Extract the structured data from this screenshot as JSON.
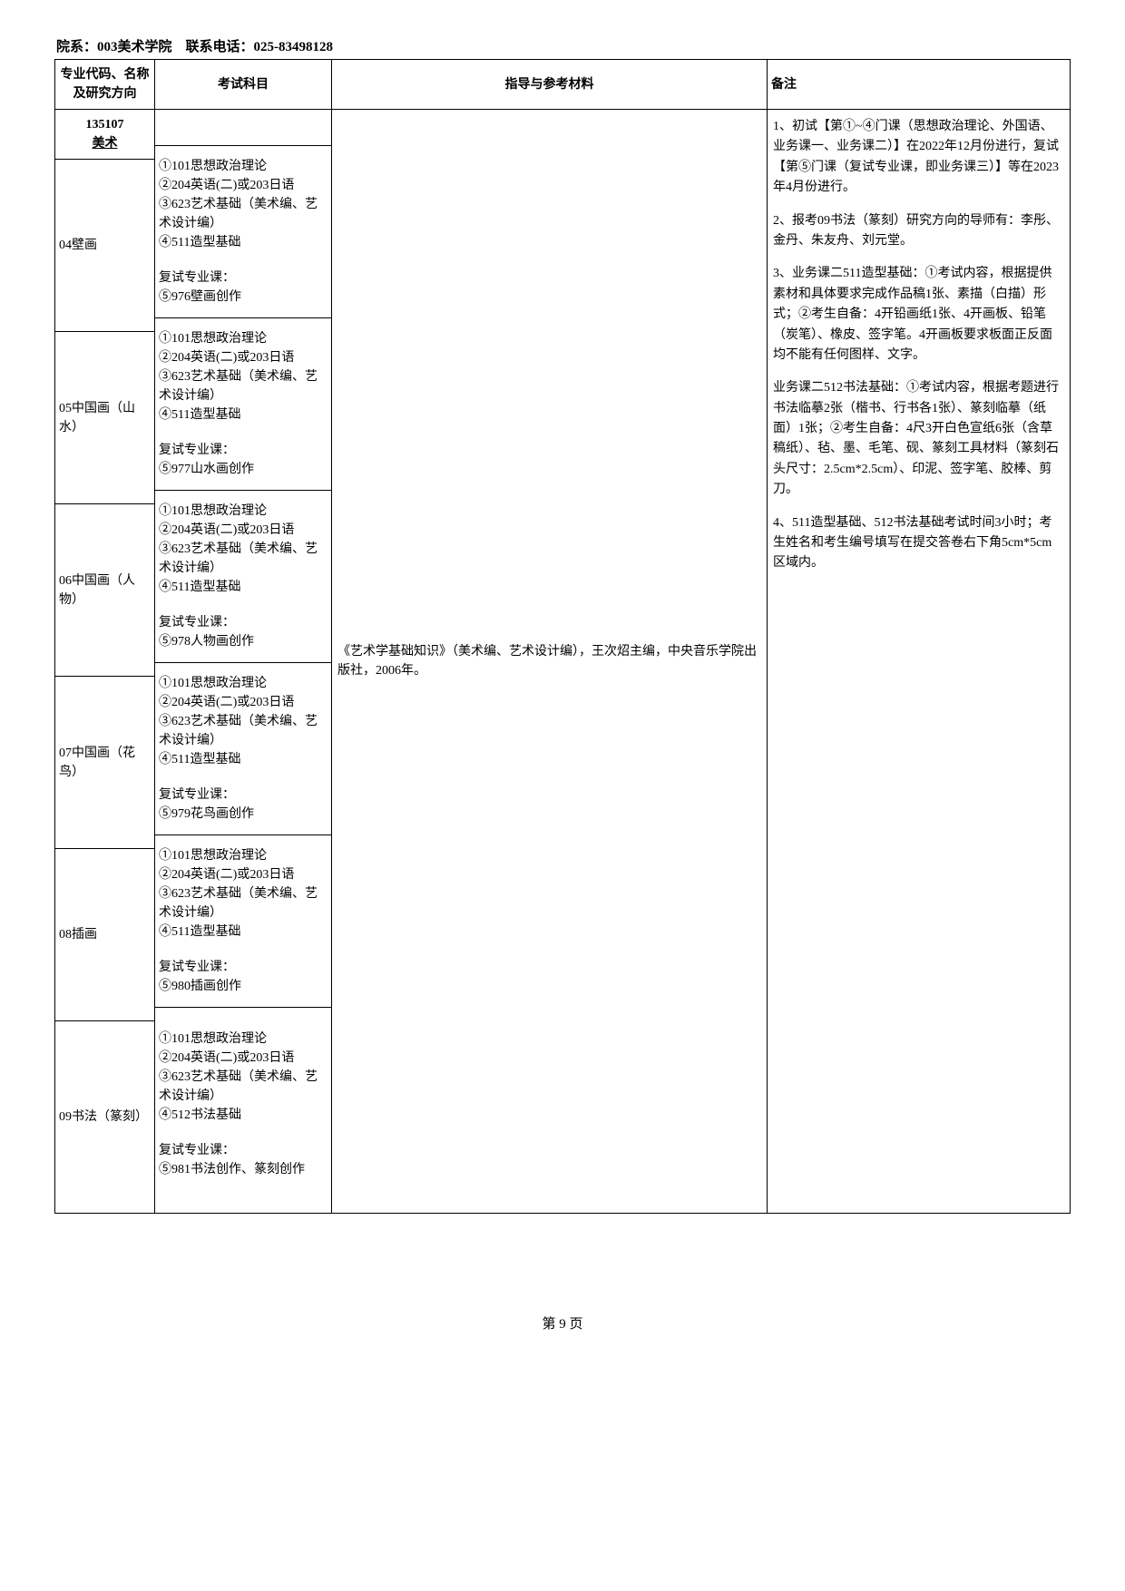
{
  "header": "院系：003美术学院　联系电话：025-83498128",
  "columns": {
    "major": "专业代码、名称\n及研究方向",
    "exam": "考试科目",
    "ref": "指导与参考材料",
    "notes": "备注"
  },
  "majorHeader": {
    "code": "135107",
    "name": "美术"
  },
  "directions": [
    {
      "label": "04壁画",
      "exam1": "①101思想政治理论\n②204英语(二)或203日语\n③623艺术基础（美术编、艺术设计编）\n④511造型基础",
      "exam2": "复试专业课：\n⑤976壁画创作"
    },
    {
      "label": "05中国画（山水）",
      "exam1": "①101思想政治理论\n②204英语(二)或203日语\n③623艺术基础（美术编、艺术设计编）\n④511造型基础",
      "exam2": "复试专业课：\n⑤977山水画创作"
    },
    {
      "label": "06中国画（人物）",
      "exam1": "①101思想政治理论\n②204英语(二)或203日语\n③623艺术基础（美术编、艺术设计编）\n④511造型基础",
      "exam2": "复试专业课：\n⑤978人物画创作"
    },
    {
      "label": "07中国画（花鸟）",
      "exam1": "①101思想政治理论\n②204英语(二)或203日语\n③623艺术基础（美术编、艺术设计编）\n④511造型基础",
      "exam2": "复试专业课：\n⑤979花鸟画创作"
    },
    {
      "label": "08插画",
      "exam1": "①101思想政治理论\n②204英语(二)或203日语\n③623艺术基础（美术编、艺术设计编）\n④511造型基础",
      "exam2": "复试专业课：\n⑤980插画创作"
    },
    {
      "label": "09书法（篆刻）",
      "exam1": "①101思想政治理论\n②204英语(二)或203日语\n③623艺术基础（美术编、艺术设计编）\n④512书法基础",
      "exam2": "复试专业课：\n⑤981书法创作、篆刻创作"
    }
  ],
  "reference": "《艺术学基础知识》（美术编、艺术设计编），王次炤主编，中央音乐学院出版社，2006年。",
  "notes": {
    "p1": "1、初试【第①~④门课（思想政治理论、外国语、业务课一、业务课二）】在2022年12月份进行，复试【第⑤门课（复试专业课，即业务课三）】等在2023年4月份进行。",
    "p2": "2、报考09书法（篆刻）研究方向的导师有：李彤、金丹、朱友舟、刘元堂。",
    "p3": "3、业务课二511造型基础：①考试内容，根据提供素材和具体要求完成作品稿1张、素描（白描）形式；②考生自备：4开铅画纸1张、4开画板、铅笔（炭笔）、橡皮、签字笔。4开画板要求板面正反面均不能有任何图样、文字。",
    "p4": "业务课二512书法基础：①考试内容，根据考题进行书法临摹2张（楷书、行书各1张）、篆刻临摹（纸面）1张；②考生自备：4尺3开白色宣纸6张（含草稿纸）、毡、墨、毛笔、砚、篆刻工具材料（篆刻石头尺寸：2.5cm*2.5cm）、印泥、签字笔、胶棒、剪刀。",
    "p5": "4、511造型基础、512书法基础考试时间3小时；考生姓名和考生编号填写在提交答卷右下角5cm*5cm区域内。"
  },
  "footer": "第 9 页"
}
